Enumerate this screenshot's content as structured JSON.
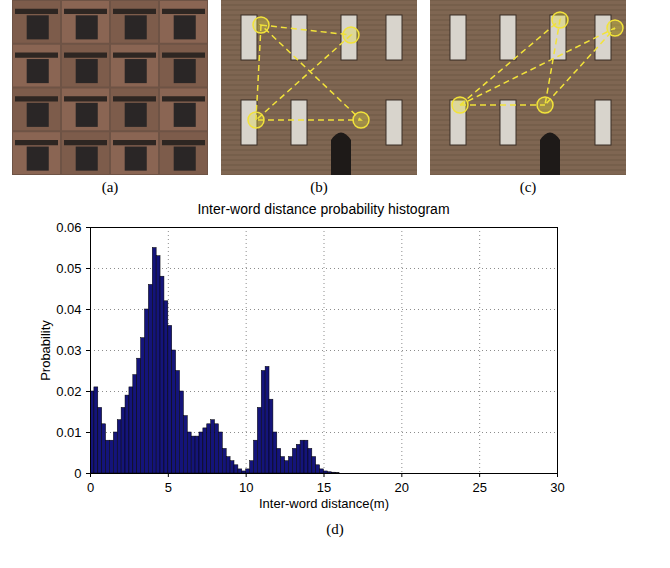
{
  "panels": [
    {
      "label": "(a)"
    },
    {
      "label": "(b)"
    },
    {
      "label": "(c)"
    }
  ],
  "chart_data": {
    "type": "histogram",
    "title": "Inter-word distance probability histogram",
    "xlabel": "Inter-word distance(m)",
    "ylabel": "Probability",
    "caption": "(d)",
    "bins": [
      0,
      0.25,
      0.5,
      0.75,
      1,
      1.25,
      1.5,
      1.75,
      2,
      2.25,
      2.5,
      2.75,
      3,
      3.25,
      3.5,
      3.75,
      4,
      4.25,
      4.5,
      4.75,
      5,
      5.25,
      5.5,
      5.75,
      6,
      6.25,
      6.5,
      6.75,
      7,
      7.25,
      7.5,
      7.75,
      8,
      8.25,
      8.5,
      8.75,
      9,
      9.25,
      9.5,
      9.75,
      10,
      10.25,
      10.5,
      10.75,
      11,
      11.25,
      11.5,
      11.75,
      12,
      12.25,
      12.5,
      12.75,
      13,
      13.25,
      13.5,
      13.75,
      14,
      14.25,
      14.5,
      14.75,
      15,
      15.25,
      15.5,
      15.75,
      16
    ],
    "values": [
      0.02,
      0.021,
      0.016,
      0.012,
      0.008,
      0.008,
      0.01,
      0.013,
      0.016,
      0.019,
      0.021,
      0.024,
      0.028,
      0.033,
      0.04,
      0.046,
      0.055,
      0.053,
      0.048,
      0.042,
      0.036,
      0.03,
      0.025,
      0.02,
      0.014,
      0.01,
      0.009,
      0.009,
      0.01,
      0.011,
      0.012,
      0.013,
      0.012,
      0.01,
      0.006,
      0.004,
      0.003,
      0.002,
      0.001,
      0.0005,
      0.001,
      0.003,
      0.008,
      0.016,
      0.025,
      0.026,
      0.018,
      0.01,
      0.006,
      0.004,
      0.003,
      0.004,
      0.006,
      0.007,
      0.008,
      0.008,
      0.006,
      0.004,
      0.002,
      0.001,
      0.0005,
      0.0003,
      0.0002,
      0.0001
    ],
    "color": "#14147a",
    "xlim": [
      0,
      30
    ],
    "xticks": [
      0,
      5,
      10,
      15,
      20,
      25,
      30
    ],
    "ylim": [
      0,
      0.06
    ],
    "yticks": [
      0,
      0.01,
      0.02,
      0.03,
      0.04,
      0.05,
      0.06
    ],
    "grid": true
  }
}
